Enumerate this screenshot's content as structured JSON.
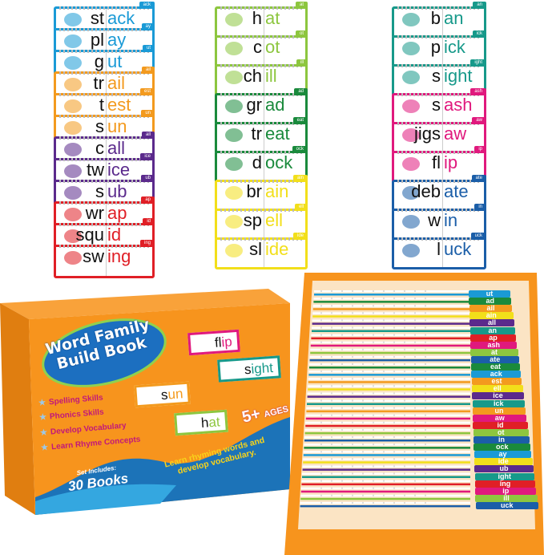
{
  "colors": {
    "blue": "#1a9ad6",
    "orange": "#f39a1e",
    "purple": "#5b2a8c",
    "red": "#e01f26",
    "lime": "#8dc63f",
    "green": "#1a8a3c",
    "yellow": "#f2df1a",
    "teal": "#17998a",
    "pink": "#e0197d",
    "navy": "#1b5ea8",
    "box": "#f7941d"
  },
  "columns": [
    {
      "cards": [
        {
          "onset": "st",
          "rime": "ack",
          "tab": "ack",
          "color": "#1a9ad6"
        },
        {
          "onset": "pl",
          "rime": "ay",
          "tab": "ay",
          "color": "#1a9ad6"
        },
        {
          "onset": "g",
          "rime": "ut",
          "tab": "ut",
          "color": "#1a9ad6"
        },
        {
          "onset": "tr",
          "rime": "ail",
          "tab": "ail",
          "color": "#f39a1e"
        },
        {
          "onset": "t",
          "rime": "est",
          "tab": "est",
          "color": "#f39a1e"
        },
        {
          "onset": "s",
          "rime": "un",
          "tab": "un",
          "color": "#f39a1e"
        },
        {
          "onset": "c",
          "rime": "all",
          "tab": "all",
          "color": "#5b2a8c"
        },
        {
          "onset": "tw",
          "rime": "ice",
          "tab": "ice",
          "color": "#5b2a8c"
        },
        {
          "onset": "s",
          "rime": "ub",
          "tab": "ub",
          "color": "#5b2a8c"
        },
        {
          "onset": "wr",
          "rime": "ap",
          "tab": "ap",
          "color": "#e01f26"
        },
        {
          "onset": "squ",
          "rime": "id",
          "tab": "id",
          "color": "#e01f26"
        },
        {
          "onset": "sw",
          "rime": "ing",
          "tab": "ing",
          "color": "#e01f26"
        }
      ]
    },
    {
      "cards": [
        {
          "onset": "h",
          "rime": "at",
          "tab": "at",
          "color": "#8dc63f"
        },
        {
          "onset": "c",
          "rime": "ot",
          "tab": "ot",
          "color": "#8dc63f"
        },
        {
          "onset": "ch",
          "rime": "ill",
          "tab": "ill",
          "color": "#8dc63f"
        },
        {
          "onset": "gr",
          "rime": "ad",
          "tab": "ad",
          "color": "#1a8a3c"
        },
        {
          "onset": "tr",
          "rime": "eat",
          "tab": "eat",
          "color": "#1a8a3c"
        },
        {
          "onset": "d",
          "rime": "ock",
          "tab": "ock",
          "color": "#1a8a3c"
        },
        {
          "onset": "br",
          "rime": "ain",
          "tab": "ain",
          "color": "#f2df1a"
        },
        {
          "onset": "sp",
          "rime": "ell",
          "tab": "ell",
          "color": "#f2df1a"
        },
        {
          "onset": "sl",
          "rime": "ide",
          "tab": "ide",
          "color": "#f2df1a"
        }
      ]
    },
    {
      "cards": [
        {
          "onset": "b",
          "rime": "an",
          "tab": "an",
          "color": "#17998a"
        },
        {
          "onset": "p",
          "rime": "ick",
          "tab": "ick",
          "color": "#17998a"
        },
        {
          "onset": "s",
          "rime": "ight",
          "tab": "ight",
          "color": "#17998a"
        },
        {
          "onset": "s",
          "rime": "ash",
          "tab": "ash",
          "color": "#e0197d"
        },
        {
          "onset": "jigs",
          "rime": "aw",
          "tab": "aw",
          "color": "#e0197d"
        },
        {
          "onset": "fl",
          "rime": "ip",
          "tab": "ip",
          "color": "#e0197d"
        },
        {
          "onset": "deb",
          "rime": "ate",
          "tab": "ate",
          "color": "#1b5ea8"
        },
        {
          "onset": "w",
          "rime": "in",
          "tab": "in",
          "color": "#1b5ea8"
        },
        {
          "onset": "l",
          "rime": "uck",
          "tab": "uck",
          "color": "#1b5ea8"
        }
      ]
    }
  ],
  "box": {
    "title_line1": "Word Family",
    "title_line2": "Build Book",
    "features": [
      "Spelling Skills",
      "Phonics Skills",
      "Develop Vocabulary",
      "Learn Rhyme Concepts"
    ],
    "ages": "5+",
    "ages_label": "AGES",
    "tagline_line1": "Learn rhyming words and",
    "tagline_line2": "develop vocabulary.",
    "set_label": "Set Includes:",
    "set_count": "30 Books",
    "mini_cards": [
      {
        "onset": "fl",
        "rime": "ip",
        "color": "#e0197d"
      },
      {
        "onset": "s",
        "rime": "ight",
        "color": "#17998a"
      },
      {
        "onset": "s",
        "rime": "un",
        "color": "#f39a1e"
      },
      {
        "onset": "h",
        "rime": "at",
        "color": "#8dc63f"
      }
    ]
  },
  "tray": {
    "tabs": [
      {
        "label": "ut",
        "color": "#1a9ad6"
      },
      {
        "label": "ad",
        "color": "#1a8a3c"
      },
      {
        "label": "ail",
        "color": "#f39a1e"
      },
      {
        "label": "ain",
        "color": "#f2df1a"
      },
      {
        "label": "all",
        "color": "#5b2a8c"
      },
      {
        "label": "an",
        "color": "#17998a"
      },
      {
        "label": "ap",
        "color": "#e01f26"
      },
      {
        "label": "ash",
        "color": "#e0197d"
      },
      {
        "label": "at",
        "color": "#8dc63f"
      },
      {
        "label": "ate",
        "color": "#1b5ea8"
      },
      {
        "label": "eat",
        "color": "#1a8a3c"
      },
      {
        "label": "ack",
        "color": "#1a9ad6"
      },
      {
        "label": "est",
        "color": "#f39a1e"
      },
      {
        "label": "ell",
        "color": "#f2df1a"
      },
      {
        "label": "ice",
        "color": "#5b2a8c"
      },
      {
        "label": "ick",
        "color": "#17998a"
      },
      {
        "label": "un",
        "color": "#f39a1e"
      },
      {
        "label": "aw",
        "color": "#e0197d"
      },
      {
        "label": "id",
        "color": "#e01f26"
      },
      {
        "label": "ot",
        "color": "#8dc63f"
      },
      {
        "label": "in",
        "color": "#1b5ea8"
      },
      {
        "label": "ock",
        "color": "#1a8a3c"
      },
      {
        "label": "ay",
        "color": "#1a9ad6"
      },
      {
        "label": "ide",
        "color": "#f2df1a"
      },
      {
        "label": "ub",
        "color": "#5b2a8c"
      },
      {
        "label": "ight",
        "color": "#17998a"
      },
      {
        "label": "ing",
        "color": "#e01f26"
      },
      {
        "label": "ip",
        "color": "#e0197d"
      },
      {
        "label": "ill",
        "color": "#8dc63f"
      },
      {
        "label": "uck",
        "color": "#1b5ea8"
      }
    ]
  }
}
